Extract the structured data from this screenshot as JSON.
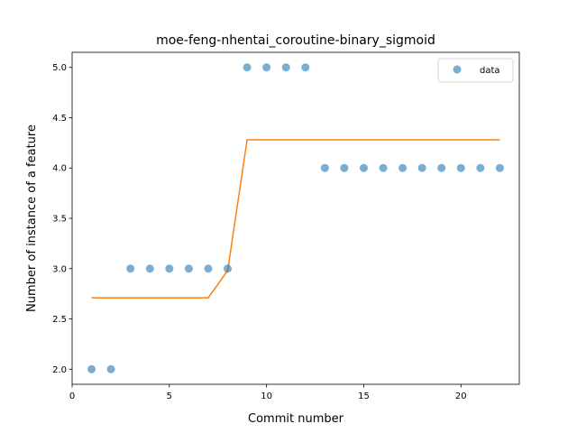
{
  "chart_data": {
    "type": "scatter",
    "title": "moe-feng-nhentai_coroutine-binary_sigmoid",
    "xlabel": "Commit number",
    "ylabel": "Number of instance of a feature",
    "xlim": [
      0,
      23
    ],
    "ylim": [
      1.85,
      5.15
    ],
    "xticks": [
      0,
      5,
      10,
      15,
      20
    ],
    "yticks": [
      2.0,
      2.5,
      3.0,
      3.5,
      4.0,
      4.5,
      5.0
    ],
    "xtick_labels": [
      "0",
      "5",
      "10",
      "15",
      "20"
    ],
    "ytick_labels": [
      "2.0",
      "2.5",
      "3.0",
      "3.5",
      "4.0",
      "4.5",
      "5.0"
    ],
    "legend": {
      "position": "top-right",
      "entries": [
        "data"
      ]
    },
    "series": [
      {
        "name": "data",
        "kind": "scatter",
        "color": "#1f77b4",
        "x": [
          1,
          2,
          3,
          4,
          5,
          6,
          7,
          8,
          9,
          10,
          11,
          12,
          13,
          14,
          15,
          16,
          17,
          18,
          19,
          20,
          21,
          22
        ],
        "y": [
          2,
          2,
          3,
          3,
          3,
          3,
          3,
          3,
          5,
          5,
          5,
          5,
          4,
          4,
          4,
          4,
          4,
          4,
          4,
          4,
          4,
          4
        ]
      },
      {
        "kind": "line",
        "color": "#ff7f0e",
        "x": [
          1,
          2,
          3,
          4,
          5,
          6,
          7,
          8,
          9,
          10,
          11,
          12,
          13,
          14,
          15,
          16,
          17,
          18,
          19,
          20,
          21,
          22
        ],
        "y": [
          2.71,
          2.71,
          2.71,
          2.71,
          2.71,
          2.71,
          2.71,
          2.98,
          4.28,
          4.28,
          4.28,
          4.28,
          4.28,
          4.28,
          4.28,
          4.28,
          4.28,
          4.28,
          4.28,
          4.28,
          4.28,
          4.28
        ]
      }
    ]
  }
}
